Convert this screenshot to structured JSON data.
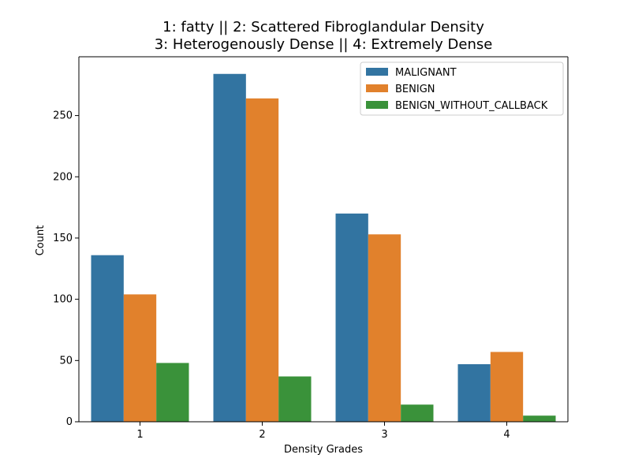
{
  "chart_data": {
    "type": "bar",
    "title": [
      "1: fatty || 2: Scattered Fibroglandular Density",
      "3: Heterogenously Dense || 4: Extremely Dense"
    ],
    "xlabel": "Density Grades",
    "ylabel": "Count",
    "categories": [
      "1",
      "2",
      "3",
      "4"
    ],
    "ylim": [
      0,
      298
    ],
    "yticks": [
      0,
      50,
      100,
      150,
      200,
      250
    ],
    "legend_position": "top-right",
    "series": [
      {
        "name": "MALIGNANT",
        "color": "#3274a1",
        "values": [
          136,
          284,
          170,
          47
        ]
      },
      {
        "name": "BENIGN",
        "color": "#e1812c",
        "values": [
          104,
          264,
          153,
          57
        ]
      },
      {
        "name": "BENIGN_WITHOUT_CALLBACK",
        "color": "#3a923a",
        "values": [
          48,
          37,
          14,
          5
        ]
      }
    ]
  }
}
